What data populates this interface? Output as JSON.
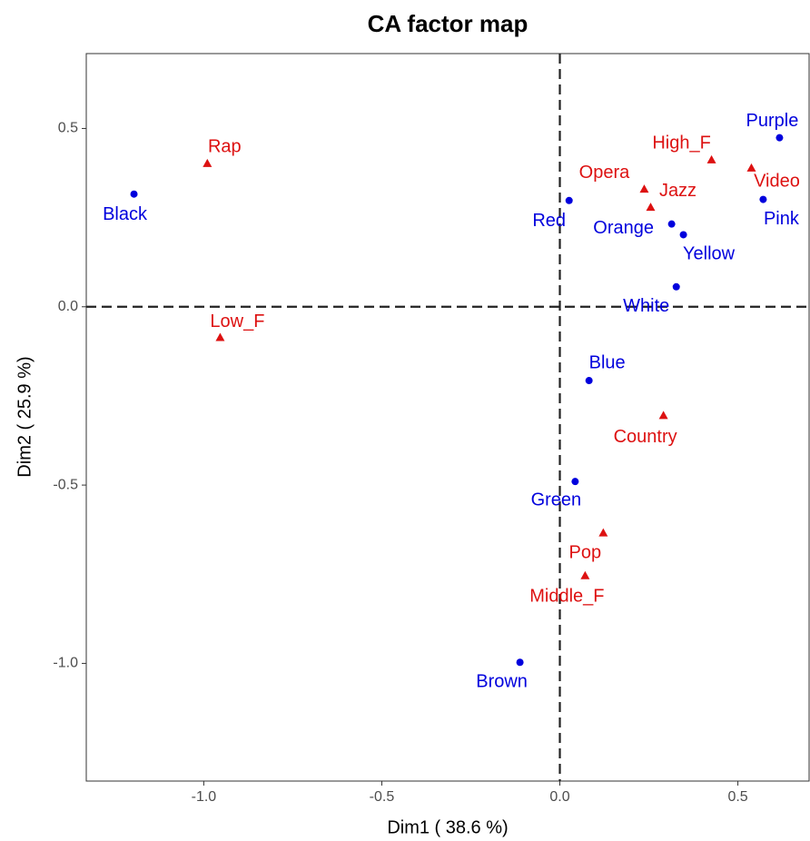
{
  "chart_data": {
    "type": "scatter",
    "title": "CA factor map",
    "xlabel": "Dim1 ( 38.6 %)",
    "ylabel": "Dim2 ( 25.9 %)",
    "xlim": [
      -1.33,
      0.7
    ],
    "ylim": [
      -1.33,
      0.71
    ],
    "xticks": [
      {
        "value": -1.0,
        "label": "-1.0"
      },
      -0.5,
      {
        "value": 0.0,
        "label": "0.0"
      },
      0.5
    ],
    "yticks": [
      {
        "value": -1.0,
        "label": "-1.0"
      },
      -0.5,
      {
        "value": 0.0,
        "label": "0.0"
      },
      0.5
    ],
    "grid": false,
    "reference_lines": {
      "x": 0,
      "y": 0
    },
    "series": [
      {
        "color": "#0000dd",
        "marker": "circle",
        "labels": [
          "Black",
          "Red",
          "Orange",
          "Yellow",
          "Purple",
          "Pink",
          "White",
          "Blue",
          "Green",
          "Brown"
        ],
        "x": [
          -1.196,
          0.026,
          0.314,
          0.347,
          0.617,
          0.571,
          0.327,
          0.082,
          0.043,
          -0.112
        ],
        "y": [
          0.316,
          0.298,
          0.232,
          0.202,
          0.474,
          0.301,
          0.056,
          -0.207,
          -0.49,
          -0.997
        ]
      },
      {
        "color": "#dd1111",
        "marker": "triangle",
        "labels": [
          "Rap",
          "Low_F",
          "Opera",
          "Jazz",
          "High_F",
          "Video",
          "Country",
          "Pop",
          "Middle_F"
        ],
        "x": [
          -0.99,
          -0.954,
          0.237,
          0.255,
          0.426,
          0.538,
          0.291,
          0.122,
          0.071
        ],
        "y": [
          0.401,
          -0.087,
          0.329,
          0.278,
          0.411,
          0.388,
          -0.306,
          -0.635,
          -0.755
        ]
      }
    ]
  }
}
